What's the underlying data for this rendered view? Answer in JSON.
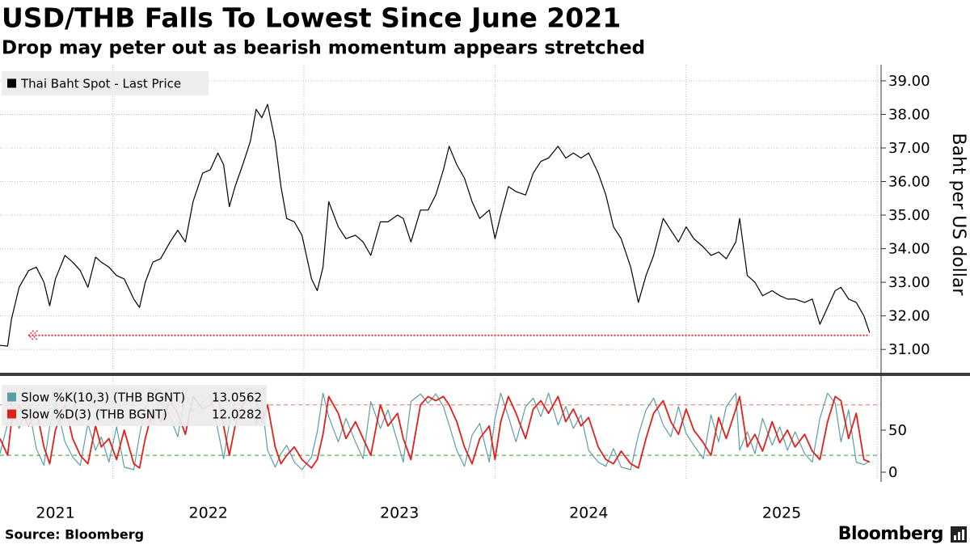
{
  "title": "USD/THB Falls To Lowest Since June 2021",
  "subtitle": "Drop may peter out as bearish momentum appears stretched",
  "source": "Source: Bloomberg",
  "brand": "Bloomberg",
  "chart_data": [
    {
      "type": "line",
      "y_label": "Baht per US dollar",
      "xlim": [
        2021.41,
        2026.02
      ],
      "ylim": [
        30.33,
        39.48
      ],
      "yticks": [
        {
          "value": 31,
          "label": "31.00"
        },
        {
          "value": 32,
          "label": "32.00"
        },
        {
          "value": 33,
          "label": "33.00"
        },
        {
          "value": 34,
          "label": "34.00"
        },
        {
          "value": 35,
          "label": "35.00"
        },
        {
          "value": 36,
          "label": "36.00"
        },
        {
          "value": 37,
          "label": "37.00"
        },
        {
          "value": 38,
          "label": "38.00"
        },
        {
          "value": 39,
          "label": "39.00"
        }
      ],
      "xgrid": [
        2022,
        2023,
        2024,
        2025,
        2026
      ],
      "grid": true,
      "legend": "top-left",
      "hline": {
        "y": 31.42,
        "x": [
          2021.56,
          2025.96
        ],
        "color": "#e5303a"
      },
      "x": [
        2021.41,
        2021.45,
        2021.47,
        2021.51,
        2021.56,
        2021.6,
        2021.64,
        2021.67,
        2021.7,
        2021.75,
        2021.79,
        2021.83,
        2021.87,
        2021.91,
        2021.94,
        2021.98,
        2022.02,
        2022.06,
        2022.11,
        2022.14,
        2022.17,
        2022.21,
        2022.25,
        2022.3,
        2022.34,
        2022.38,
        2022.42,
        2022.47,
        2022.51,
        2022.55,
        2022.58,
        2022.61,
        2022.64,
        2022.68,
        2022.72,
        2022.75,
        2022.78,
        2022.81,
        2022.85,
        2022.88,
        2022.91,
        2022.95,
        2022.99,
        2023.04,
        2023.07,
        2023.1,
        2023.13,
        2023.18,
        2023.22,
        2023.27,
        2023.31,
        2023.35,
        2023.4,
        2023.44,
        2023.49,
        2023.52,
        2023.56,
        2023.61,
        2023.65,
        2023.69,
        2023.73,
        2023.76,
        2023.8,
        2023.84,
        2023.88,
        2023.92,
        2023.97,
        2024.0,
        2024.03,
        2024.07,
        2024.11,
        2024.16,
        2024.2,
        2024.24,
        2024.28,
        2024.33,
        2024.37,
        2024.41,
        2024.45,
        2024.49,
        2024.54,
        2024.58,
        2024.62,
        2024.66,
        2024.71,
        2024.75,
        2024.79,
        2024.83,
        2024.88,
        2024.92,
        2024.96,
        2025.0,
        2025.04,
        2025.09,
        2025.13,
        2025.17,
        2025.21,
        2025.26,
        2025.28,
        2025.32,
        2025.36,
        2025.4,
        2025.45,
        2025.49,
        2025.53,
        2025.57,
        2025.62,
        2025.66,
        2025.7,
        2025.74,
        2025.78,
        2025.81,
        2025.85,
        2025.89,
        2025.93,
        2025.96
      ],
      "series": [
        {
          "name": "Thai Baht Spot - Last Price",
          "color": "#000000",
          "values": [
            31.12,
            31.1,
            31.9,
            32.85,
            33.35,
            33.45,
            33.0,
            32.3,
            33.1,
            33.8,
            33.6,
            33.35,
            32.85,
            33.75,
            33.6,
            33.45,
            33.2,
            33.1,
            32.5,
            32.25,
            33.0,
            33.6,
            33.7,
            34.2,
            34.55,
            34.2,
            35.4,
            36.25,
            36.35,
            36.85,
            36.5,
            35.25,
            35.85,
            36.5,
            37.2,
            38.15,
            37.9,
            38.3,
            37.2,
            35.85,
            34.9,
            34.8,
            34.4,
            33.1,
            32.75,
            33.45,
            35.4,
            34.65,
            34.3,
            34.4,
            34.2,
            33.8,
            34.8,
            34.8,
            35.0,
            34.9,
            34.2,
            35.15,
            35.15,
            35.6,
            36.35,
            37.05,
            36.5,
            36.1,
            35.4,
            34.9,
            35.15,
            34.3,
            35.0,
            35.85,
            35.7,
            35.6,
            36.25,
            36.6,
            36.7,
            37.05,
            36.7,
            36.85,
            36.7,
            36.85,
            36.25,
            35.6,
            34.65,
            34.3,
            33.45,
            32.4,
            33.2,
            33.8,
            34.9,
            34.55,
            34.2,
            34.65,
            34.3,
            34.05,
            33.8,
            33.9,
            33.7,
            34.2,
            34.9,
            33.2,
            33.0,
            32.6,
            32.75,
            32.6,
            32.5,
            32.5,
            32.4,
            32.5,
            31.75,
            32.25,
            32.75,
            32.85,
            32.5,
            32.4,
            32.0,
            31.5
          ]
        }
      ]
    },
    {
      "type": "line",
      "xlim": [
        2021.41,
        2026.02
      ],
      "ylim": [
        -7.7,
        111.5
      ],
      "yticks": [
        0,
        50
      ],
      "xgrid": [
        2022,
        2023,
        2024,
        2025,
        2026
      ],
      "grid": true,
      "legend": "top-left",
      "xticks": [
        {
          "value": 2021.7,
          "label": "2021"
        },
        {
          "value": 2022.5,
          "label": "2022"
        },
        {
          "value": 2023.5,
          "label": "2023"
        },
        {
          "value": 2024.49,
          "label": "2024"
        },
        {
          "value": 2025.5,
          "label": "2025"
        }
      ],
      "reference_lines": [
        {
          "y": 80,
          "color": "#e8795a"
        },
        {
          "y": 20,
          "color": "#3a9a3a"
        }
      ],
      "x": [
        2021.41,
        2021.45,
        2021.47,
        2021.51,
        2021.56,
        2021.6,
        2021.64,
        2021.67,
        2021.7,
        2021.75,
        2021.79,
        2021.83,
        2021.87,
        2021.91,
        2021.94,
        2021.98,
        2022.02,
        2022.06,
        2022.11,
        2022.14,
        2022.17,
        2022.21,
        2022.25,
        2022.3,
        2022.34,
        2022.38,
        2022.42,
        2022.47,
        2022.51,
        2022.55,
        2022.58,
        2022.61,
        2022.64,
        2022.68,
        2022.72,
        2022.75,
        2022.78,
        2022.81,
        2022.85,
        2022.88,
        2022.91,
        2022.95,
        2022.99,
        2023.04,
        2023.07,
        2023.1,
        2023.13,
        2023.18,
        2023.22,
        2023.27,
        2023.31,
        2023.35,
        2023.4,
        2023.44,
        2023.49,
        2023.52,
        2023.56,
        2023.61,
        2023.65,
        2023.69,
        2023.73,
        2023.76,
        2023.8,
        2023.84,
        2023.88,
        2023.92,
        2023.97,
        2024.0,
        2024.03,
        2024.07,
        2024.11,
        2024.16,
        2024.2,
        2024.24,
        2024.28,
        2024.33,
        2024.37,
        2024.41,
        2024.45,
        2024.49,
        2024.54,
        2024.58,
        2024.62,
        2024.66,
        2024.71,
        2024.75,
        2024.79,
        2024.83,
        2024.88,
        2024.92,
        2024.96,
        2025.0,
        2025.04,
        2025.09,
        2025.13,
        2025.17,
        2025.21,
        2025.26,
        2025.28,
        2025.32,
        2025.36,
        2025.4,
        2025.45,
        2025.49,
        2025.53,
        2025.57,
        2025.62,
        2025.66,
        2025.7,
        2025.74,
        2025.78,
        2025.81,
        2025.85,
        2025.89,
        2025.93,
        2025.96
      ],
      "series": [
        {
          "name": "Slow %K(10,3) (THB BGNT)",
          "color": "#5b9ea6",
          "values": [
            22,
            58,
            84,
            52,
            78,
            28,
            8,
            54,
            84,
            36,
            18,
            8,
            58,
            26,
            42,
            12,
            54,
            6,
            3,
            44,
            78,
            56,
            88,
            66,
            42,
            94,
            72,
            83,
            92,
            50,
            16,
            58,
            84,
            93,
            82,
            56,
            84,
            26,
            6,
            22,
            32,
            12,
            3,
            18,
            48,
            94,
            66,
            36,
            64,
            36,
            16,
            84,
            52,
            74,
            36,
            12,
            84,
            93,
            82,
            93,
            78,
            56,
            26,
            7,
            44,
            58,
            12,
            64,
            94,
            66,
            36,
            78,
            88,
            66,
            94,
            56,
            78,
            52,
            68,
            26,
            12,
            7,
            28,
            6,
            3,
            44,
            74,
            88,
            56,
            42,
            78,
            46,
            32,
            16,
            68,
            36,
            78,
            94,
            26,
            48,
            22,
            64,
            32,
            54,
            26,
            48,
            22,
            12,
            64,
            94,
            82,
            36,
            74,
            12,
            9,
            13.0562
          ]
        },
        {
          "name": "Slow %D(3) (THB BGNT)",
          "color": "#e0201b",
          "values": [
            40,
            20,
            60,
            80,
            55,
            75,
            30,
            10,
            50,
            80,
            40,
            20,
            10,
            55,
            30,
            40,
            15,
            50,
            10,
            5,
            40,
            75,
            60,
            85,
            70,
            45,
            90,
            75,
            80,
            90,
            55,
            20,
            55,
            80,
            90,
            85,
            60,
            80,
            30,
            10,
            20,
            30,
            15,
            5,
            15,
            45,
            90,
            70,
            40,
            60,
            40,
            20,
            80,
            55,
            70,
            40,
            15,
            80,
            90,
            85,
            90,
            80,
            60,
            30,
            10,
            40,
            55,
            15,
            60,
            90,
            70,
            40,
            75,
            85,
            70,
            90,
            60,
            75,
            55,
            65,
            30,
            15,
            10,
            25,
            10,
            5,
            40,
            70,
            85,
            60,
            45,
            75,
            50,
            35,
            20,
            65,
            40,
            75,
            90,
            30,
            45,
            25,
            60,
            35,
            50,
            30,
            45,
            25,
            15,
            60,
            90,
            85,
            40,
            70,
            15,
            12.0282
          ]
        }
      ]
    }
  ]
}
